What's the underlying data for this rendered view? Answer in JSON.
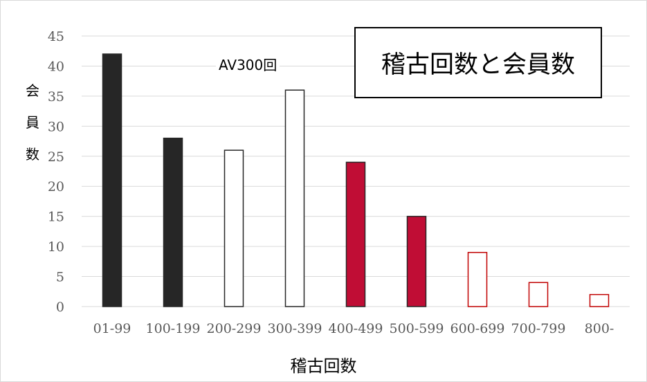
{
  "chart_data": {
    "type": "bar",
    "title": "稽古回数と会員数",
    "xlabel": "稽古回数",
    "ylabel": "会員数",
    "ylim": [
      0,
      45
    ],
    "yticks": [
      0,
      5,
      10,
      15,
      20,
      25,
      30,
      35,
      40,
      45
    ],
    "ytick_labels": [
      "0",
      "5",
      "10",
      "15",
      "20",
      "25",
      "30",
      "35",
      "40",
      "45"
    ],
    "grid": true,
    "categories": [
      "01-99",
      "100-199",
      "200-299",
      "300-399",
      "400-499",
      "500-599",
      "600-699",
      "700-799",
      "800-"
    ],
    "values": [
      42,
      28,
      26,
      36,
      24,
      15,
      9,
      4,
      2
    ],
    "bar_fills": [
      "#262626",
      "#262626",
      "#ffffff",
      "#ffffff",
      "#c00d35",
      "#c00d35",
      "#ffffff",
      "#ffffff",
      "#ffffff"
    ],
    "bar_strokes": [
      "#262626",
      "#262626",
      "#262626",
      "#262626",
      "#262626",
      "#262626",
      "#c00000",
      "#c00000",
      "#c00000"
    ],
    "annotations": [
      "AV300回"
    ]
  }
}
